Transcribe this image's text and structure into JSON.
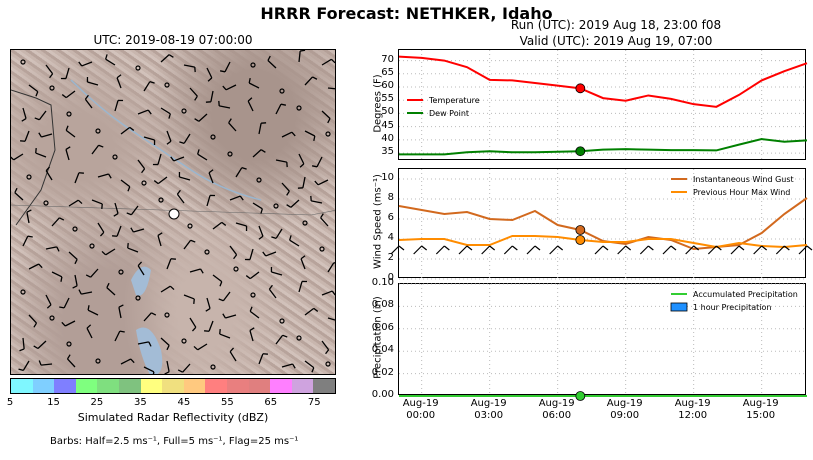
{
  "title": "HRRR Forecast: NETHKER, Idaho",
  "map": {
    "title": "UTC: 2019-08-19 07:00:00",
    "colorbar_colors": [
      "#7ff7ff",
      "#7fcfff",
      "#7f7fff",
      "#7fff7f",
      "#7fdf7f",
      "#7fc27f",
      "#ffff7f",
      "#f0e07f",
      "#ffc97f",
      "#ff7f7f",
      "#e97f7f",
      "#e07f7f",
      "#ff7fff",
      "#cfa3df",
      "#7f7f7f"
    ],
    "colorbar_ticks": [
      "5",
      "15",
      "25",
      "35",
      "45",
      "55",
      "65",
      "75"
    ],
    "colorbar_label": "Simulated Radar Reflectivity (dBZ)",
    "barbs_note": "Barbs: Half=2.5 ms⁻¹, Full=5 ms⁻¹, Flag=25 ms⁻¹"
  },
  "run_info": {
    "line1": "Run (UTC): 2019 Aug 18, 23:00 f08",
    "line2": "Valid (UTC): 2019 Aug 19, 07:00"
  },
  "x_ticks": [
    "Aug-19\n00:00",
    "Aug-19\n03:00",
    "Aug-19\n06:00",
    "Aug-19\n09:00",
    "Aug-19\n12:00",
    "Aug-19\n15:00"
  ],
  "chart_data": [
    {
      "type": "line",
      "ylabel": "Degrees (F)",
      "yticks": [
        35,
        40,
        45,
        50,
        55,
        60,
        65,
        70
      ],
      "ylim": [
        32,
        74
      ],
      "x_hours": [
        -1,
        0,
        1,
        2,
        3,
        4,
        5,
        6,
        7,
        8,
        9,
        10,
        11,
        12,
        13,
        14,
        15,
        16,
        17
      ],
      "series": [
        {
          "name": "Temperature",
          "color": "#ff0000",
          "values": [
            71.5,
            71,
            70,
            67.5,
            62.7,
            62.5,
            61.5,
            60.5,
            59.5,
            55.8,
            54.8,
            56.8,
            55.5,
            53.5,
            52.5,
            57,
            62.5,
            66,
            69
          ]
        },
        {
          "name": "Dew Point",
          "color": "#008000",
          "values": [
            34.5,
            34.5,
            34.5,
            35.3,
            35.7,
            35.3,
            35.3,
            35.5,
            35.7,
            36.3,
            36.5,
            36.3,
            36.1,
            36.1,
            36,
            38.2,
            40.3,
            39.3,
            39.8
          ]
        }
      ],
      "highlight_hour": 7,
      "legend": "left"
    },
    {
      "type": "line",
      "ylabel": "Wind Speed (ms⁻¹)",
      "yticks": [
        0,
        2,
        4,
        6,
        8,
        10
      ],
      "ylim": [
        0,
        11
      ],
      "x_hours": [
        -1,
        0,
        1,
        2,
        3,
        4,
        5,
        6,
        7,
        8,
        9,
        10,
        11,
        12,
        13,
        14,
        15,
        16,
        17
      ],
      "series": [
        {
          "name": "Instantaneous Wind Gust",
          "color": "#d2691e",
          "values": [
            7.3,
            6.9,
            6.5,
            6.7,
            6.0,
            5.9,
            6.8,
            5.4,
            4.9,
            3.8,
            3.5,
            4.2,
            3.9,
            3.0,
            3.2,
            3.4,
            4.6,
            6.5,
            8.1
          ]
        },
        {
          "name": "Previous Hour Max Wind",
          "color": "#ff8c00",
          "values": [
            3.9,
            4.0,
            4.0,
            3.4,
            3.4,
            4.3,
            4.3,
            4.2,
            3.9,
            3.7,
            3.7,
            4.0,
            4.0,
            3.6,
            3.2,
            3.6,
            3.3,
            3.2,
            3.4
          ]
        }
      ],
      "highlight_hour": 7,
      "legend": "top-right"
    },
    {
      "type": "line",
      "ylabel": "Precipitation (in)",
      "yticks": [
        "0.00",
        "0.02",
        "0.04",
        "0.06",
        "0.08",
        "0.10"
      ],
      "ylim": [
        0,
        0.1
      ],
      "x_hours": [
        -1,
        0,
        1,
        2,
        3,
        4,
        5,
        6,
        7,
        8,
        9,
        10,
        11,
        12,
        13,
        14,
        15,
        16,
        17
      ],
      "series": [
        {
          "name": "Accumulated Precipitation",
          "color": "#32cd32",
          "values": [
            0,
            0,
            0,
            0,
            0,
            0,
            0,
            0,
            0,
            0,
            0,
            0,
            0,
            0,
            0,
            0,
            0,
            0,
            0
          ]
        },
        {
          "name": "1 hour Precipitation",
          "color": "#1e90ff",
          "values": [
            0,
            0,
            0,
            0,
            0,
            0,
            0,
            0,
            0,
            0,
            0,
            0,
            0,
            0,
            0,
            0,
            0,
            0,
            0
          ]
        }
      ],
      "highlight_hour": 7,
      "legend": "top-right"
    }
  ]
}
